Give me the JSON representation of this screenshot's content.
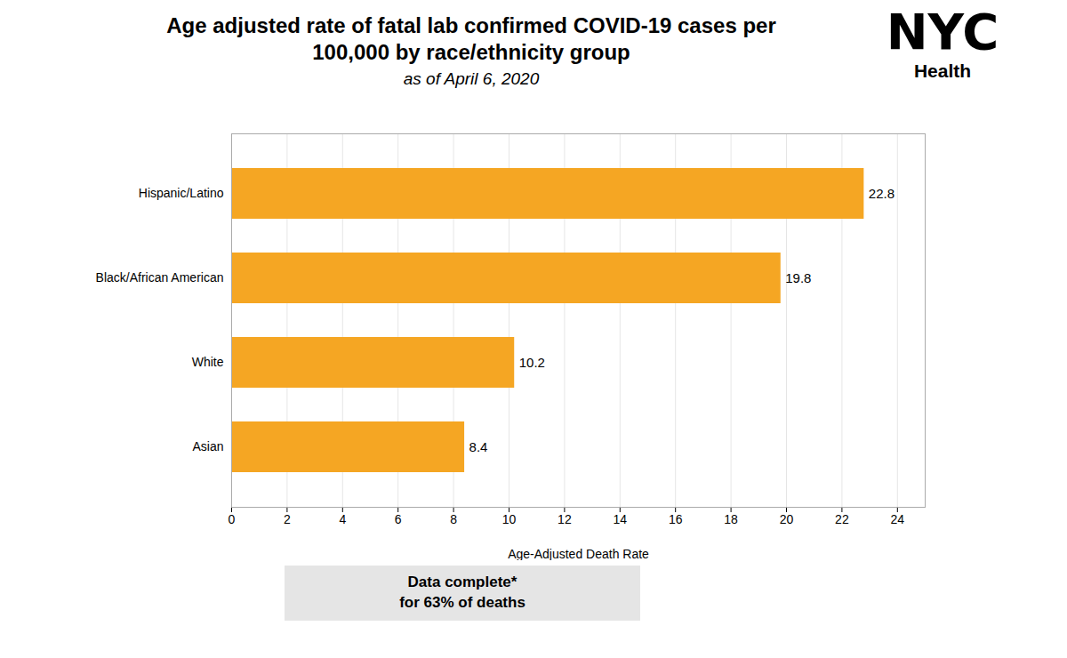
{
  "chart_data": {
    "type": "bar",
    "orientation": "horizontal",
    "title": "Age adjusted rate of fatal lab confirmed COVID-19 cases per 100,000 by race/ethnicity group",
    "subtitle": "as of April 6, 2020",
    "xlabel": "Age-Adjusted Death Rate",
    "categories": [
      "Hispanic/Latino",
      "Black/African American",
      "White",
      "Asian"
    ],
    "values": [
      22.8,
      19.8,
      10.2,
      8.4
    ],
    "color": "#F5A623",
    "xlim": [
      0,
      25
    ],
    "xticks": [
      0,
      2,
      4,
      6,
      8,
      10,
      12,
      14,
      16,
      18,
      20,
      22,
      24
    ],
    "grid": true,
    "data_labels": true,
    "annotations": [
      "NYC",
      "Health",
      "Data complete*",
      "for 63% of deaths"
    ]
  }
}
